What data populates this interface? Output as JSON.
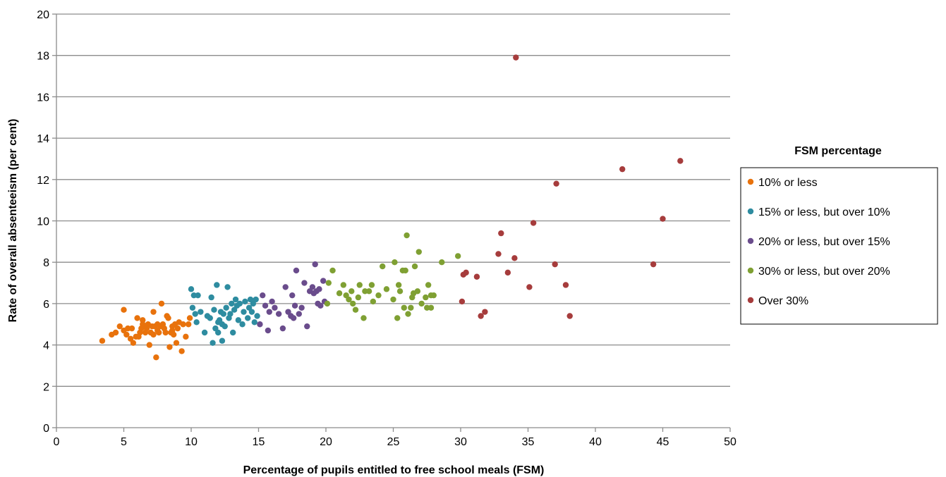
{
  "chart_data": {
    "type": "scatter",
    "xlabel": "Percentage of pupils entitled to free school meals (FSM)",
    "ylabel": "Rate of overall absenteeism (per cent)",
    "xlim": [
      0,
      50
    ],
    "ylim": [
      0,
      20
    ],
    "xticks": [
      0,
      5,
      10,
      15,
      20,
      25,
      30,
      35,
      40,
      45,
      50
    ],
    "yticks": [
      0,
      2,
      4,
      6,
      8,
      10,
      12,
      14,
      16,
      18,
      20
    ],
    "grid": "horizontal",
    "legend": {
      "title": "FSM percentage",
      "position": "right"
    },
    "series": [
      {
        "name": "10% or less",
        "color": "#E8720C",
        "points": [
          [
            3.4,
            4.2
          ],
          [
            4.1,
            4.5
          ],
          [
            4.4,
            4.6
          ],
          [
            4.7,
            4.9
          ],
          [
            5.0,
            5.7
          ],
          [
            5.0,
            4.7
          ],
          [
            5.2,
            4.5
          ],
          [
            5.3,
            4.8
          ],
          [
            5.5,
            4.3
          ],
          [
            5.6,
            4.8
          ],
          [
            5.7,
            4.1
          ],
          [
            5.9,
            4.4
          ],
          [
            6.1,
            4.4
          ],
          [
            6.2,
            4.6
          ],
          [
            6.3,
            4.8
          ],
          [
            6.4,
            5.2
          ],
          [
            6.4,
            5.0
          ],
          [
            6.5,
            4.9
          ],
          [
            6.6,
            4.6
          ],
          [
            6.7,
            4.8
          ],
          [
            6.8,
            5.0
          ],
          [
            6.9,
            4.0
          ],
          [
            7.0,
            4.6
          ],
          [
            7.1,
            4.9
          ],
          [
            7.2,
            5.6
          ],
          [
            7.2,
            4.5
          ],
          [
            7.3,
            4.9
          ],
          [
            7.4,
            3.4
          ],
          [
            7.5,
            5.0
          ],
          [
            7.5,
            4.7
          ],
          [
            7.6,
            4.6
          ],
          [
            7.7,
            4.9
          ],
          [
            7.8,
            6.0
          ],
          [
            7.9,
            5.0
          ],
          [
            8.0,
            4.8
          ],
          [
            8.1,
            4.6
          ],
          [
            8.2,
            5.4
          ],
          [
            8.3,
            5.3
          ],
          [
            8.4,
            3.9
          ],
          [
            8.5,
            4.6
          ],
          [
            8.6,
            4.9
          ],
          [
            8.7,
            4.5
          ],
          [
            8.8,
            5.0
          ],
          [
            8.9,
            4.1
          ],
          [
            9.0,
            4.8
          ],
          [
            9.1,
            5.1
          ],
          [
            9.3,
            3.7
          ],
          [
            9.4,
            5.0
          ],
          [
            9.6,
            4.4
          ],
          [
            9.8,
            5.0
          ],
          [
            9.9,
            5.3
          ],
          [
            8.6,
            4.7
          ],
          [
            6.0,
            5.3
          ]
        ]
      },
      {
        "name": "15% or less, but over 10%",
        "color": "#2E8CA0",
        "points": [
          [
            10.0,
            6.7
          ],
          [
            10.1,
            5.8
          ],
          [
            10.2,
            6.4
          ],
          [
            10.3,
            5.5
          ],
          [
            10.4,
            5.1
          ],
          [
            10.5,
            6.4
          ],
          [
            10.7,
            5.6
          ],
          [
            11.0,
            4.6
          ],
          [
            11.2,
            5.4
          ],
          [
            11.4,
            5.3
          ],
          [
            11.5,
            6.3
          ],
          [
            11.6,
            4.1
          ],
          [
            11.7,
            5.7
          ],
          [
            11.8,
            4.8
          ],
          [
            11.9,
            6.9
          ],
          [
            12.0,
            4.6
          ],
          [
            12.1,
            5.2
          ],
          [
            12.2,
            5.6
          ],
          [
            12.3,
            5.0
          ],
          [
            12.3,
            4.2
          ],
          [
            12.4,
            5.5
          ],
          [
            12.5,
            4.9
          ],
          [
            12.6,
            5.8
          ],
          [
            12.7,
            6.8
          ],
          [
            12.8,
            5.3
          ],
          [
            12.9,
            5.5
          ],
          [
            13.0,
            6.0
          ],
          [
            13.1,
            4.6
          ],
          [
            13.2,
            5.7
          ],
          [
            13.3,
            6.2
          ],
          [
            13.4,
            5.9
          ],
          [
            13.5,
            5.2
          ],
          [
            13.6,
            6.0
          ],
          [
            13.8,
            5.0
          ],
          [
            13.9,
            5.6
          ],
          [
            14.0,
            6.1
          ],
          [
            14.2,
            5.3
          ],
          [
            14.3,
            5.8
          ],
          [
            14.4,
            6.2
          ],
          [
            14.5,
            5.6
          ],
          [
            14.6,
            6.0
          ],
          [
            14.7,
            5.1
          ],
          [
            14.8,
            6.2
          ],
          [
            14.9,
            5.4
          ],
          [
            12.0,
            5.1
          ]
        ]
      },
      {
        "name": "20% or less, but over 15%",
        "color": "#6A4C8C",
        "points": [
          [
            15.1,
            5.0
          ],
          [
            15.3,
            6.4
          ],
          [
            15.5,
            5.9
          ],
          [
            15.7,
            4.7
          ],
          [
            15.8,
            5.6
          ],
          [
            16.0,
            6.1
          ],
          [
            16.2,
            5.8
          ],
          [
            16.5,
            5.5
          ],
          [
            16.8,
            4.8
          ],
          [
            17.0,
            6.8
          ],
          [
            17.2,
            5.6
          ],
          [
            17.4,
            5.4
          ],
          [
            17.5,
            6.4
          ],
          [
            17.7,
            5.9
          ],
          [
            17.8,
            7.6
          ],
          [
            18.0,
            5.5
          ],
          [
            18.2,
            5.8
          ],
          [
            18.4,
            7.0
          ],
          [
            18.6,
            4.9
          ],
          [
            18.8,
            6.6
          ],
          [
            19.0,
            6.8
          ],
          [
            19.1,
            6.5
          ],
          [
            19.2,
            7.9
          ],
          [
            19.3,
            6.6
          ],
          [
            19.4,
            6.0
          ],
          [
            19.5,
            6.7
          ],
          [
            19.6,
            5.9
          ],
          [
            19.8,
            7.1
          ],
          [
            19.9,
            6.1
          ],
          [
            17.6,
            5.3
          ]
        ]
      },
      {
        "name": "30% or less, but over 20%",
        "color": "#7FA033",
        "points": [
          [
            20.1,
            6.0
          ],
          [
            20.2,
            7.0
          ],
          [
            20.5,
            7.6
          ],
          [
            21.0,
            6.5
          ],
          [
            21.3,
            6.9
          ],
          [
            21.5,
            6.4
          ],
          [
            21.7,
            6.2
          ],
          [
            21.9,
            6.6
          ],
          [
            22.0,
            6.0
          ],
          [
            22.2,
            5.7
          ],
          [
            22.4,
            6.3
          ],
          [
            22.5,
            6.9
          ],
          [
            22.8,
            5.3
          ],
          [
            22.9,
            6.6
          ],
          [
            23.2,
            6.6
          ],
          [
            23.4,
            6.9
          ],
          [
            23.5,
            6.1
          ],
          [
            23.9,
            6.4
          ],
          [
            24.2,
            7.8
          ],
          [
            24.5,
            6.7
          ],
          [
            25.0,
            6.2
          ],
          [
            25.1,
            8.0
          ],
          [
            25.3,
            5.3
          ],
          [
            25.4,
            6.9
          ],
          [
            25.5,
            6.6
          ],
          [
            25.7,
            7.6
          ],
          [
            25.8,
            5.8
          ],
          [
            26.0,
            9.3
          ],
          [
            26.1,
            5.5
          ],
          [
            26.3,
            5.8
          ],
          [
            26.4,
            6.3
          ],
          [
            26.5,
            6.5
          ],
          [
            26.6,
            7.8
          ],
          [
            26.8,
            6.6
          ],
          [
            26.9,
            8.5
          ],
          [
            27.1,
            6.0
          ],
          [
            27.4,
            6.3
          ],
          [
            27.6,
            6.9
          ],
          [
            27.8,
            6.4
          ],
          [
            28.6,
            8.0
          ],
          [
            29.8,
            8.3
          ],
          [
            25.9,
            7.6
          ],
          [
            27.5,
            5.8
          ],
          [
            27.8,
            5.8
          ],
          [
            28.0,
            6.4
          ]
        ]
      },
      {
        "name": "Over 30%",
        "color": "#A63C3C",
        "points": [
          [
            30.1,
            6.1
          ],
          [
            30.2,
            7.4
          ],
          [
            30.4,
            7.5
          ],
          [
            31.2,
            7.3
          ],
          [
            31.5,
            5.4
          ],
          [
            31.8,
            5.6
          ],
          [
            32.8,
            8.4
          ],
          [
            33.0,
            9.4
          ],
          [
            33.5,
            7.5
          ],
          [
            34.0,
            8.2
          ],
          [
            34.1,
            17.9
          ],
          [
            35.1,
            6.8
          ],
          [
            35.4,
            9.9
          ],
          [
            37.0,
            7.9
          ],
          [
            37.1,
            11.8
          ],
          [
            37.8,
            6.9
          ],
          [
            38.1,
            5.4
          ],
          [
            42.0,
            12.5
          ],
          [
            44.3,
            7.9
          ],
          [
            45.0,
            10.1
          ],
          [
            46.3,
            12.9
          ]
        ]
      }
    ]
  }
}
